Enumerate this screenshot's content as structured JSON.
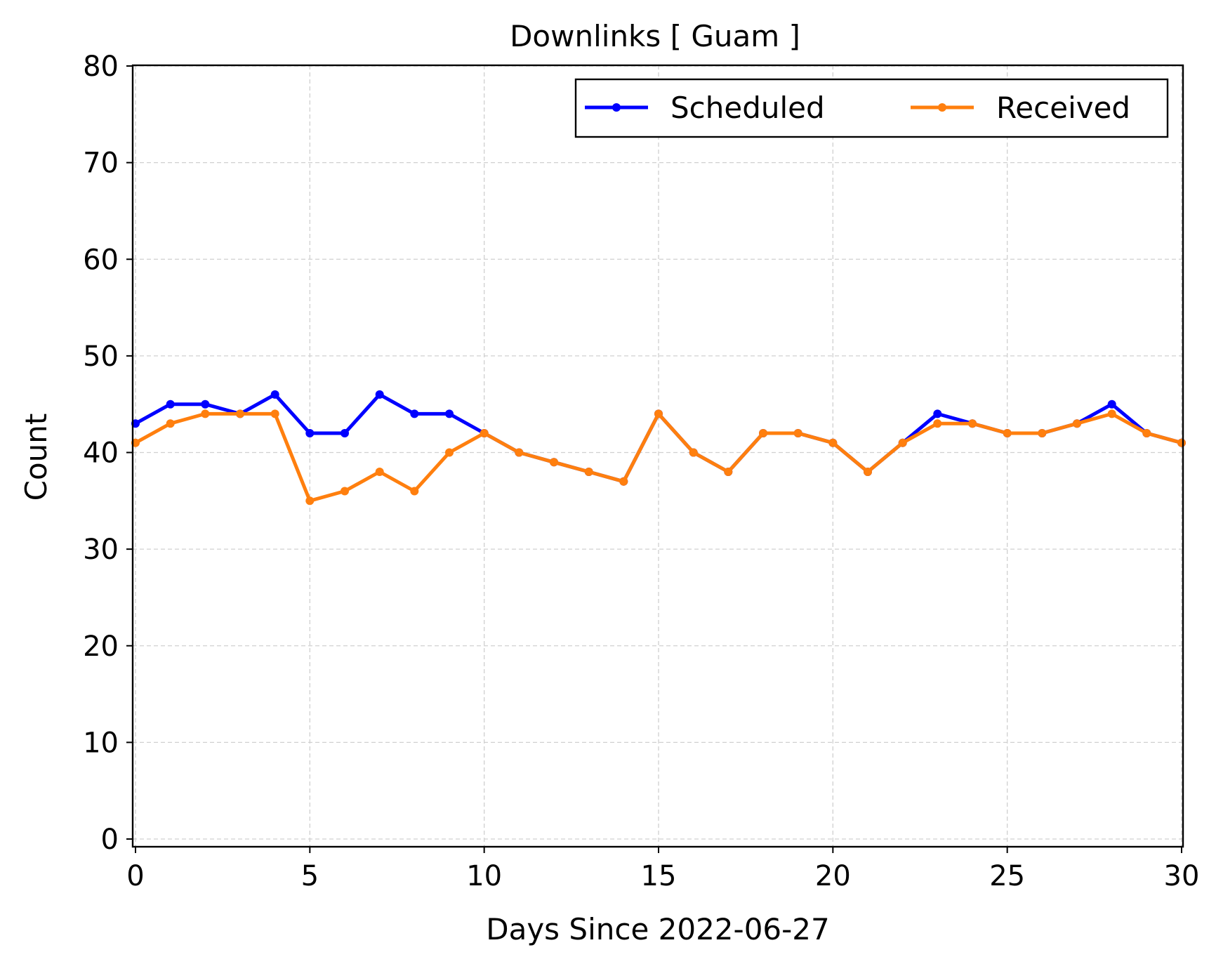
{
  "chart_data": {
    "type": "line",
    "title": "Downlinks [ Guam ]",
    "xlabel": "Days Since 2022-06-27",
    "ylabel": "Count",
    "xlim": [
      0,
      30
    ],
    "ylim": [
      0,
      80
    ],
    "xticks": [
      0,
      5,
      10,
      15,
      20,
      25,
      30
    ],
    "yticks": [
      0,
      10,
      20,
      30,
      40,
      50,
      60,
      70,
      80
    ],
    "grid": true,
    "legend_position": "top-right",
    "x": [
      0,
      1,
      2,
      3,
      4,
      5,
      6,
      7,
      8,
      9,
      10,
      11,
      12,
      13,
      14,
      15,
      16,
      17,
      18,
      19,
      20,
      21,
      22,
      23,
      24,
      25,
      26,
      27,
      28,
      29,
      30
    ],
    "series": [
      {
        "name": "Scheduled",
        "color": "#0000ff",
        "values": [
          43,
          45,
          45,
          44,
          46,
          42,
          42,
          46,
          44,
          44,
          42,
          40,
          39,
          38,
          37,
          44,
          40,
          38,
          42,
          42,
          41,
          38,
          41,
          44,
          43,
          42,
          42,
          43,
          45,
          42,
          41
        ]
      },
      {
        "name": "Received",
        "color": "#ff7f0e",
        "values": [
          41,
          43,
          44,
          44,
          44,
          35,
          36,
          38,
          36,
          40,
          42,
          40,
          39,
          38,
          37,
          44,
          40,
          38,
          42,
          42,
          41,
          38,
          41,
          43,
          43,
          42,
          42,
          43,
          44,
          42,
          41
        ]
      }
    ]
  }
}
